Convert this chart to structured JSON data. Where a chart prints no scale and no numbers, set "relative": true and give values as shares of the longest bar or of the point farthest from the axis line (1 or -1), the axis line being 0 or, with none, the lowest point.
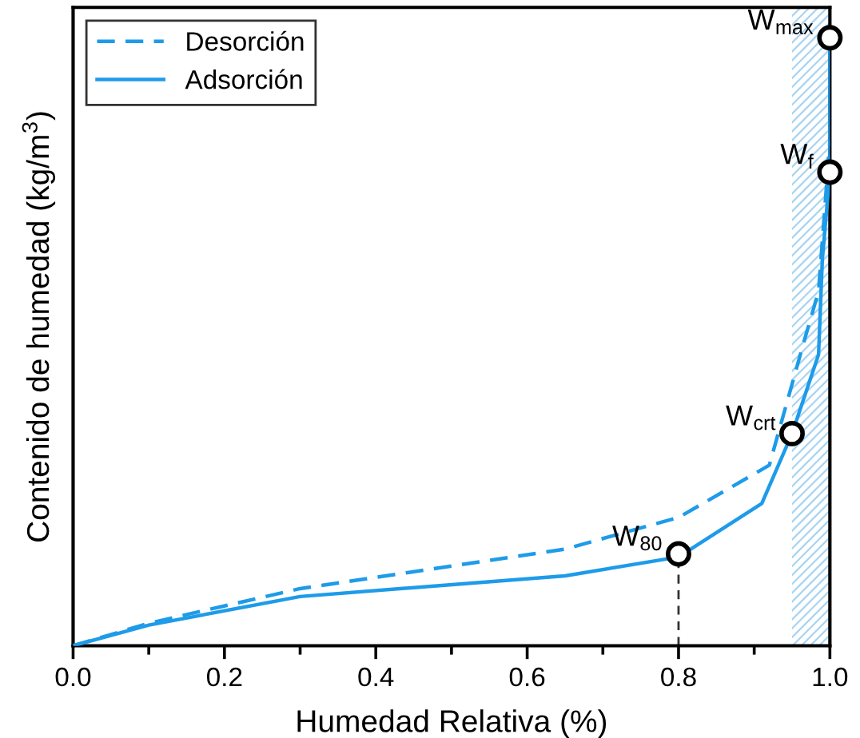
{
  "chart_data": {
    "type": "line",
    "relative": true,
    "xlabel": "Humedad Relativa (%)",
    "ylabel": "Contenido de humedad (kg/m$^{3}$)",
    "xlim": [
      0,
      1
    ],
    "xticks": [
      {
        "value": 0,
        "label": "0.0"
      },
      {
        "value": 0.2,
        "label": "0.2"
      },
      {
        "value": 0.4,
        "label": "0.4"
      },
      {
        "value": 0.6,
        "label": "0.6"
      },
      {
        "value": 0.8,
        "label": "0.8"
      },
      {
        "value": 1,
        "label": "1.0"
      }
    ],
    "tick_labels": "x",
    "legend": "top left",
    "grid": false,
    "series": [
      {
        "name": "Desorción",
        "color": "#1e9be9",
        "line_style": "dashed",
        "x": [
          0,
          0.1,
          0.3,
          0.65,
          0.8,
          0.92,
          0.965,
          0.985,
          1.0
        ],
        "values": [
          0,
          0.037,
          0.094,
          0.159,
          0.211,
          0.297,
          0.497,
          0.583,
          0.831
        ]
      },
      {
        "name": "Adsorción",
        "color": "#1e9be9",
        "line_style": "solid",
        "x": [
          0,
          0.1,
          0.3,
          0.65,
          0.8,
          0.91,
          0.95,
          0.985,
          0.99,
          1.0,
          1.0
        ],
        "values": [
          0,
          0.034,
          0.081,
          0.115,
          0.146,
          0.234,
          0.349,
          0.479,
          0.635,
          0.779,
          1
        ]
      },
      {
        "type": "scatter",
        "color": "#ffffff",
        "marker": "circle",
        "x": [
          0.8,
          0.95,
          1.0,
          1.0
        ],
        "values": [
          0.151,
          0.349,
          0.779,
          1
        ]
      }
    ],
    "ref_lines": [
      {
        "axis": "x",
        "value": 0.8,
        "color": "#333333",
        "line_style": "dashed"
      }
    ],
    "bands": [
      {
        "axis": "x",
        "from": 0.95,
        "to": 1.0,
        "color": "#a8d4f2"
      }
    ],
    "annotations": [
      {
        "text": "W$_{80}$",
        "x": 0.8,
        "y": 0.151
      },
      {
        "text": "W$_{crt}$",
        "x": 0.95,
        "y": 0.349
      },
      {
        "text": "W$_{f}$",
        "x": 1.0,
        "y": 0.779
      },
      {
        "text": "W$_{max}$",
        "x": 1.0,
        "y": 1
      }
    ]
  }
}
